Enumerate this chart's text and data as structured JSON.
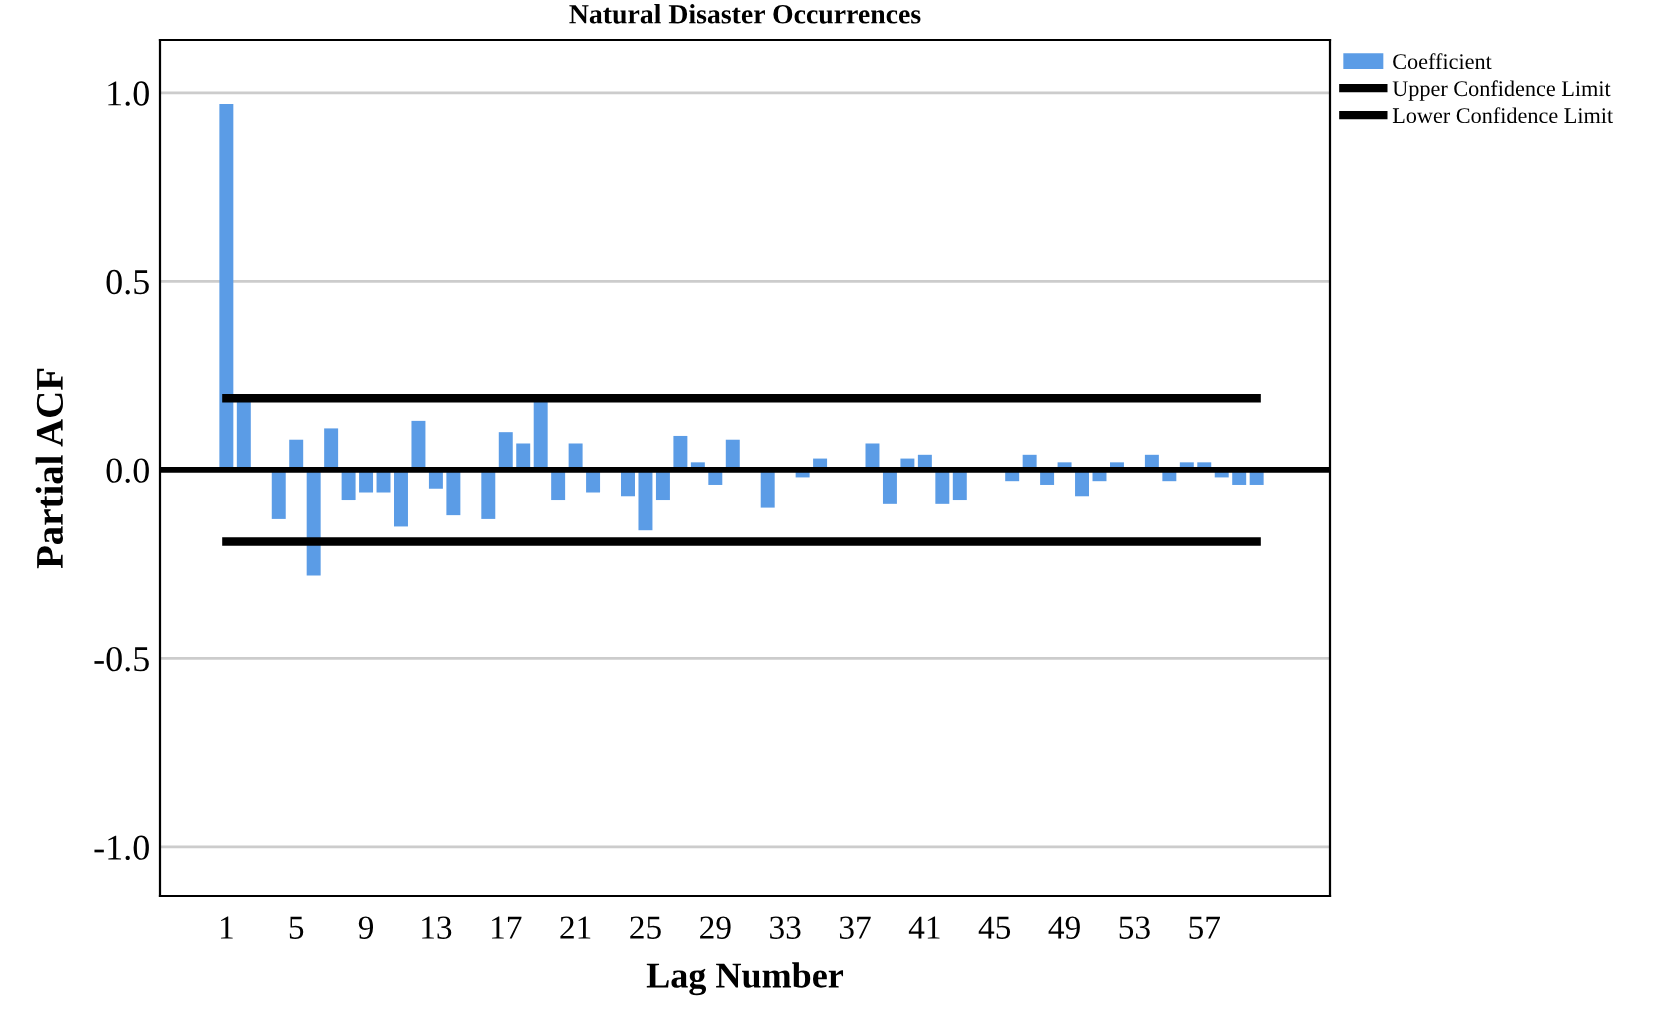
{
  "chart_data": {
    "type": "bar",
    "title": "Natural Disaster Occurrences",
    "xlabel": "Lag Number",
    "ylabel": "Partial ACF",
    "categories": [
      "1",
      null,
      null,
      null,
      "5",
      null,
      null,
      null,
      "9",
      null,
      null,
      null,
      "13",
      null,
      null,
      null,
      "17",
      null,
      null,
      null,
      "21",
      null,
      null,
      null,
      "25",
      null,
      null,
      null,
      "29",
      null,
      null,
      null,
      "33",
      null,
      null,
      null,
      "37",
      null,
      null,
      null,
      "41",
      null,
      null,
      null,
      "45",
      null,
      null,
      null,
      "49",
      null,
      null,
      null,
      "53",
      null,
      null,
      null,
      "57",
      null,
      null,
      null
    ],
    "series": [
      {
        "name": "Coefficient",
        "color": "#5b9ce6",
        "values": [
          0.97,
          0.18,
          0.0,
          -0.13,
          0.08,
          -0.28,
          0.11,
          -0.08,
          -0.06,
          -0.06,
          -0.15,
          0.13,
          -0.05,
          -0.12,
          0.0,
          -0.13,
          0.1,
          0.07,
          0.19,
          -0.08,
          0.07,
          -0.06,
          0.0,
          -0.07,
          -0.16,
          -0.08,
          0.09,
          0.02,
          -0.04,
          0.08,
          0.0,
          -0.1,
          0.0,
          -0.02,
          0.03,
          0.0,
          0.0,
          0.07,
          -0.09,
          0.03,
          0.04,
          -0.09,
          -0.08,
          0.0,
          0.0,
          -0.03,
          0.04,
          -0.04,
          0.02,
          -0.07,
          -0.03,
          0.02,
          0.0,
          0.04,
          -0.03,
          0.02,
          0.02,
          -0.02,
          -0.04,
          -0.04
        ]
      },
      {
        "name": "Upper Confidence Limit",
        "type": "line",
        "color": "#000000",
        "values": [
          0.19,
          0.19,
          0.19,
          0.19,
          0.19,
          0.19,
          0.19,
          0.19,
          0.19,
          0.19,
          0.19,
          0.19,
          0.19,
          0.19,
          0.19,
          0.19,
          0.19,
          0.19,
          0.19,
          0.19,
          0.19,
          0.19,
          0.19,
          0.19,
          0.19,
          0.19,
          0.19,
          0.19,
          0.19,
          0.19,
          0.19,
          0.19,
          0.19,
          0.19,
          0.19,
          0.19,
          0.19,
          0.19,
          0.19,
          0.19,
          0.19,
          0.19,
          0.19,
          0.19,
          0.19,
          0.19,
          0.19,
          0.19,
          0.19,
          0.19,
          0.19,
          0.19,
          0.19,
          0.19,
          0.19,
          0.19,
          0.19,
          0.19,
          0.19,
          0.19
        ]
      },
      {
        "name": "Lower Confidence Limit",
        "type": "line",
        "color": "#000000",
        "values": [
          -0.19,
          -0.19,
          -0.19,
          -0.19,
          -0.19,
          -0.19,
          -0.19,
          -0.19,
          -0.19,
          -0.19,
          -0.19,
          -0.19,
          -0.19,
          -0.19,
          -0.19,
          -0.19,
          -0.19,
          -0.19,
          -0.19,
          -0.19,
          -0.19,
          -0.19,
          -0.19,
          -0.19,
          -0.19,
          -0.19,
          -0.19,
          -0.19,
          -0.19,
          -0.19,
          -0.19,
          -0.19,
          -0.19,
          -0.19,
          -0.19,
          -0.19,
          -0.19,
          -0.19,
          -0.19,
          -0.19,
          -0.19,
          -0.19,
          -0.19,
          -0.19,
          -0.19,
          -0.19,
          -0.19,
          -0.19,
          -0.19,
          -0.19,
          -0.19,
          -0.19,
          -0.19,
          -0.19,
          -0.19,
          -0.19,
          -0.19,
          -0.19,
          -0.19,
          -0.19
        ]
      }
    ],
    "ylim": [
      -1.13,
      1.14
    ],
    "yticks": [
      {
        "value": -1.0,
        "label": "-1.0"
      },
      {
        "value": -0.5,
        "label": "-0.5"
      },
      {
        "value": 0.0,
        "label": "0.0"
      },
      {
        "value": 0.5,
        "label": "0.5"
      },
      {
        "value": 1.0,
        "label": "1.0"
      }
    ],
    "ref_lines": [
      {
        "axis": "y",
        "value": 0,
        "color": "#000000"
      }
    ],
    "grid": "y",
    "legend": "top right",
    "line_style": "solid",
    "marker": "none"
  }
}
